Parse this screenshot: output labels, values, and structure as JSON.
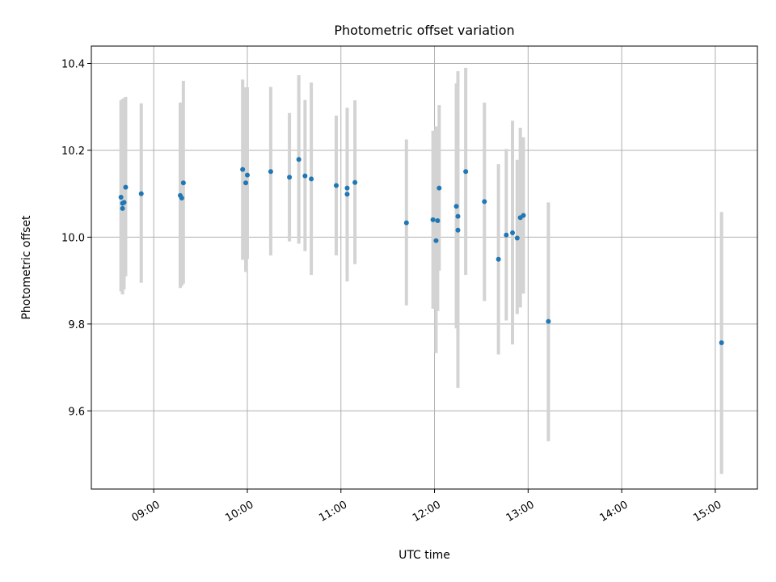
{
  "chart_data": {
    "type": "scatter",
    "title": "Photometric offset variation",
    "xlabel": "UTC time",
    "ylabel": "Photometric offset",
    "xlim": [
      "08:20",
      "15:27"
    ],
    "ylim": [
      9.42,
      10.44
    ],
    "x_ticks": [
      "09:00",
      "10:00",
      "11:00",
      "12:00",
      "13:00",
      "14:00",
      "15:00"
    ],
    "y_ticks": [
      9.6,
      9.8,
      10.0,
      10.2,
      10.4
    ],
    "grid": true,
    "colors": {
      "marker": "#1f77b4",
      "errorbar": "#d3d3d3"
    },
    "points": [
      {
        "x": "08:39",
        "y": 10.092,
        "lo": 9.875,
        "hi": 10.315
      },
      {
        "x": "08:40",
        "y": 10.078,
        "lo": 9.87,
        "hi": 10.315
      },
      {
        "x": "08:40",
        "y": 10.066,
        "lo": 9.868,
        "hi": 10.318
      },
      {
        "x": "08:41",
        "y": 10.08,
        "lo": 9.88,
        "hi": 10.32
      },
      {
        "x": "08:42",
        "y": 10.115,
        "lo": 9.91,
        "hi": 10.323
      },
      {
        "x": "08:52",
        "y": 10.1,
        "lo": 9.895,
        "hi": 10.308
      },
      {
        "x": "09:17",
        "y": 10.096,
        "lo": 9.883,
        "hi": 10.31
      },
      {
        "x": "09:18",
        "y": 10.09,
        "lo": 9.888,
        "hi": 10.31
      },
      {
        "x": "09:19",
        "y": 10.125,
        "lo": 9.893,
        "hi": 10.36
      },
      {
        "x": "09:57",
        "y": 10.156,
        "lo": 9.948,
        "hi": 10.363
      },
      {
        "x": "09:59",
        "y": 10.125,
        "lo": 9.92,
        "hi": 10.345
      },
      {
        "x": "10:00",
        "y": 10.143,
        "lo": 9.95,
        "hi": 10.345
      },
      {
        "x": "10:15",
        "y": 10.151,
        "lo": 9.958,
        "hi": 10.346
      },
      {
        "x": "10:27",
        "y": 10.138,
        "lo": 9.99,
        "hi": 10.286
      },
      {
        "x": "10:33",
        "y": 10.179,
        "lo": 9.985,
        "hi": 10.373
      },
      {
        "x": "10:37",
        "y": 10.141,
        "lo": 9.968,
        "hi": 10.316
      },
      {
        "x": "10:41",
        "y": 10.134,
        "lo": 9.913,
        "hi": 10.356
      },
      {
        "x": "10:57",
        "y": 10.119,
        "lo": 9.958,
        "hi": 10.28
      },
      {
        "x": "11:04",
        "y": 10.113,
        "lo": 9.93,
        "hi": 10.296
      },
      {
        "x": "11:04",
        "y": 10.099,
        "lo": 9.898,
        "hi": 10.298
      },
      {
        "x": "11:09",
        "y": 10.126,
        "lo": 9.938,
        "hi": 10.315
      },
      {
        "x": "11:42",
        "y": 10.033,
        "lo": 9.843,
        "hi": 10.225
      },
      {
        "x": "11:59",
        "y": 10.04,
        "lo": 9.835,
        "hi": 10.245
      },
      {
        "x": "12:01",
        "y": 9.992,
        "lo": 9.733,
        "hi": 10.255
      },
      {
        "x": "12:02",
        "y": 10.038,
        "lo": 9.83,
        "hi": 10.25
      },
      {
        "x": "12:03",
        "y": 10.113,
        "lo": 9.923,
        "hi": 10.304
      },
      {
        "x": "12:14",
        "y": 10.071,
        "lo": 9.79,
        "hi": 10.354
      },
      {
        "x": "12:15",
        "y": 10.048,
        "lo": 9.808,
        "hi": 10.288
      },
      {
        "x": "12:15",
        "y": 10.016,
        "lo": 9.653,
        "hi": 10.382
      },
      {
        "x": "12:20",
        "y": 10.151,
        "lo": 9.913,
        "hi": 10.39
      },
      {
        "x": "12:32",
        "y": 10.082,
        "lo": 9.853,
        "hi": 10.31
      },
      {
        "x": "12:41",
        "y": 9.949,
        "lo": 9.73,
        "hi": 10.168
      },
      {
        "x": "12:46",
        "y": 10.005,
        "lo": 9.808,
        "hi": 10.203
      },
      {
        "x": "12:50",
        "y": 10.01,
        "lo": 9.753,
        "hi": 10.268
      },
      {
        "x": "12:53",
        "y": 9.998,
        "lo": 9.823,
        "hi": 10.178
      },
      {
        "x": "12:55",
        "y": 10.045,
        "lo": 9.838,
        "hi": 10.252
      },
      {
        "x": "12:57",
        "y": 10.05,
        "lo": 9.87,
        "hi": 10.23
      },
      {
        "x": "13:13",
        "y": 9.806,
        "lo": 9.53,
        "hi": 10.08
      },
      {
        "x": "15:04",
        "y": 9.757,
        "lo": 9.455,
        "hi": 10.058
      }
    ]
  }
}
